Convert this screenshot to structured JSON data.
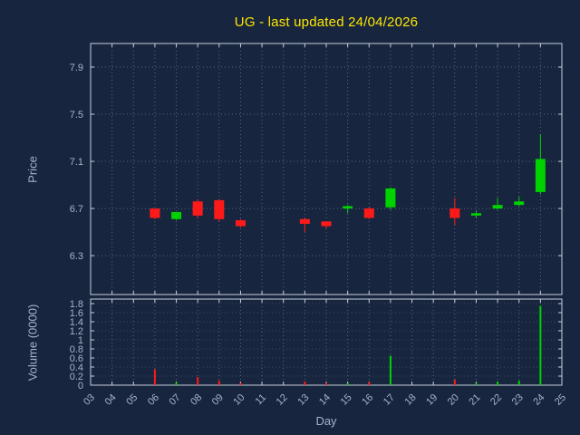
{
  "title": "UG - last updated 24/04/2026",
  "colors": {
    "background": "#17263e",
    "title": "#ffe600",
    "text": "#a7b1cf",
    "axis": "#c8cedd",
    "grid": "#67748f",
    "up": "#00d200",
    "down": "#ff1a1a"
  },
  "chart_data": {
    "type": "candlestick",
    "title": "UG - last updated 24/04/2026",
    "xlabel": "Day",
    "price_ylabel": "Price",
    "volume_ylabel": "Volume (0000)",
    "legend": "none",
    "grid": "dotted",
    "xlim": [
      3,
      25
    ],
    "price_ylim": [
      5.97,
      8.1
    ],
    "volume_ylim": [
      0,
      1.9
    ],
    "x_ticks": {
      "days": [
        3,
        4,
        5,
        6,
        7,
        8,
        9,
        10,
        11,
        12,
        13,
        14,
        15,
        16,
        17,
        18,
        19,
        20,
        21,
        22,
        23,
        24,
        25
      ],
      "labels": [
        "03",
        "04",
        "05",
        "06",
        "07",
        "08",
        "09",
        "10",
        "11",
        "12",
        "13",
        "14",
        "15",
        "16",
        "17",
        "18",
        "19",
        "20",
        "21",
        "22",
        "23",
        "24",
        "25"
      ]
    },
    "price_ticks": {
      "values": [
        6.3,
        6.7,
        7.1,
        7.5,
        7.9
      ],
      "labels": [
        "6.3",
        "6.7",
        "7.1",
        "7.5",
        "7.9"
      ]
    },
    "volume_ticks": {
      "values": [
        0,
        0.2,
        0.4,
        0.6,
        0.8,
        1,
        1.2,
        1.4,
        1.6,
        1.8
      ],
      "labels": [
        "0",
        "0.2",
        "0.4",
        "0.6",
        "0.8",
        "1",
        "1.2",
        "1.4",
        "1.6",
        "1.8"
      ]
    },
    "candles": [
      {
        "day": 6,
        "open": 6.7,
        "high": 6.7,
        "low": 6.61,
        "close": 6.62,
        "volume": 0.35
      },
      {
        "day": 7,
        "open": 6.61,
        "high": 6.67,
        "low": 6.6,
        "close": 6.67,
        "volume": 0.06
      },
      {
        "day": 8,
        "open": 6.76,
        "high": 6.78,
        "low": 6.62,
        "close": 6.64,
        "volume": 0.18
      },
      {
        "day": 9,
        "open": 6.77,
        "high": 6.78,
        "low": 6.59,
        "close": 6.61,
        "volume": 0.1
      },
      {
        "day": 10,
        "open": 6.6,
        "high": 6.61,
        "low": 6.54,
        "close": 6.55,
        "volume": 0.05
      },
      {
        "day": 13,
        "open": 6.61,
        "high": 6.62,
        "low": 6.5,
        "close": 6.57,
        "volume": 0.08
      },
      {
        "day": 14,
        "open": 6.59,
        "high": 6.59,
        "low": 6.53,
        "close": 6.55,
        "volume": 0.05
      },
      {
        "day": 15,
        "open": 6.7,
        "high": 6.73,
        "low": 6.66,
        "close": 6.72,
        "volume": 0.04
      },
      {
        "day": 16,
        "open": 6.7,
        "high": 6.71,
        "low": 6.61,
        "close": 6.62,
        "volume": 0.07
      },
      {
        "day": 17,
        "open": 6.71,
        "high": 6.88,
        "low": 6.69,
        "close": 6.87,
        "volume": 0.65
      },
      {
        "day": 20,
        "open": 6.7,
        "high": 6.79,
        "low": 6.56,
        "close": 6.62,
        "volume": 0.12
      },
      {
        "day": 21,
        "open": 6.64,
        "high": 6.68,
        "low": 6.62,
        "close": 6.66,
        "volume": 0.05
      },
      {
        "day": 22,
        "open": 6.7,
        "high": 6.79,
        "low": 6.69,
        "close": 6.73,
        "volume": 0.08
      },
      {
        "day": 23,
        "open": 6.73,
        "high": 6.8,
        "low": 6.72,
        "close": 6.76,
        "volume": 0.1
      },
      {
        "day": 24,
        "open": 6.84,
        "high": 7.33,
        "low": 6.82,
        "close": 7.12,
        "volume": 1.75
      }
    ]
  }
}
